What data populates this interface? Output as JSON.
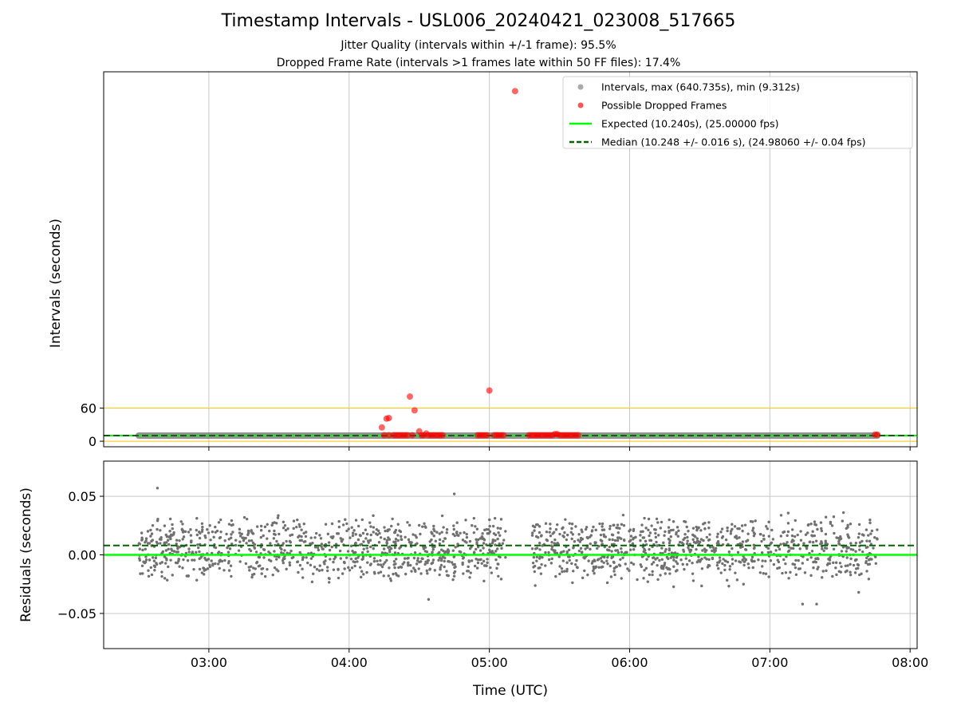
{
  "figure": {
    "title": "Timestamp Intervals - USL006_20240421_023008_517665",
    "subtitle_1": "Jitter Quality (intervals within +/-1 frame): 95.5%",
    "subtitle_2": "Dropped Frame Rate (intervals >1 frames late within 50 FF files): 17.4%"
  },
  "colors": {
    "intervals": "#808080",
    "dropped": "#ff0000",
    "expected": "#00ff00",
    "median": "#006400",
    "threshold": "#ffc000",
    "grid": "#c8c8c8",
    "residual_points": "#707070"
  },
  "chart_data": [
    {
      "type": "scatter",
      "ylabel": "Intervals (seconds)",
      "xlabel": "",
      "ylim": [
        -10,
        670
      ],
      "yticks": [
        0,
        60
      ],
      "ytick_labels": [
        "0",
        "60"
      ],
      "xlim_hours_utc": [
        2.25,
        8.05
      ],
      "xticks_hours_utc": [
        3,
        4,
        5,
        6,
        7,
        8
      ],
      "xtick_labels": [
        "03:00",
        "04:00",
        "05:00",
        "06:00",
        "07:00",
        "08:00"
      ],
      "hlines": [
        {
          "name": "threshold_high",
          "y": 60
        },
        {
          "name": "threshold_low",
          "y": 0
        }
      ],
      "legend_placement": "top-right",
      "grid": "x",
      "legend": [
        {
          "label": "Intervals, max (640.735s), min (9.312s)",
          "kind": "marker",
          "color": "#aaaaaa"
        },
        {
          "label": "Possible Dropped Frames",
          "kind": "marker",
          "color": "#ff5555"
        },
        {
          "label": "Expected (10.240s), (25.00000 fps)",
          "kind": "line",
          "color": "#00ff00"
        },
        {
          "label": "Median (10.248 +/- 0.016 s), (24.98060 +/- 0.04 fps)",
          "kind": "dashed",
          "color": "#006400"
        }
      ],
      "series": [
        {
          "name": "Intervals",
          "x_start": "02:30",
          "x_end": "07:46",
          "value": 10.25
        },
        {
          "name": "Expected",
          "value": 10.24
        },
        {
          "name": "Median",
          "value": 10.248
        },
        {
          "name": "Possible Dropped Frames",
          "points": [
            [
              "04:14",
              25
            ],
            [
              "04:16",
              41
            ],
            [
              "04:17",
              42
            ],
            [
              "04:26",
              81
            ],
            [
              "04:28",
              56
            ],
            [
              "04:30",
              18
            ],
            [
              "04:33",
              14
            ],
            [
              "05:00",
              92
            ],
            [
              "05:11",
              635
            ],
            [
              "04:15",
              11
            ],
            [
              "04:17",
              11
            ],
            [
              "04:19",
              11
            ],
            [
              "04:20",
              11
            ],
            [
              "04:21",
              11
            ],
            [
              "04:22",
              11
            ],
            [
              "04:23",
              11
            ],
            [
              "04:24",
              11
            ],
            [
              "04:25",
              11
            ],
            [
              "04:27",
              11
            ],
            [
              "04:31",
              11
            ],
            [
              "04:32",
              11
            ],
            [
              "04:34",
              11
            ],
            [
              "04:35",
              11
            ],
            [
              "04:36",
              11
            ],
            [
              "04:37",
              11
            ],
            [
              "04:38",
              11
            ],
            [
              "04:39",
              11
            ],
            [
              "04:40",
              11
            ],
            [
              "04:55",
              11
            ],
            [
              "04:56",
              11
            ],
            [
              "04:57",
              11
            ],
            [
              "04:58",
              11
            ],
            [
              "04:59",
              11
            ],
            [
              "05:02",
              11
            ],
            [
              "05:03",
              11
            ],
            [
              "05:04",
              11
            ],
            [
              "05:05",
              11
            ],
            [
              "05:06",
              11
            ],
            [
              "05:17",
              11
            ],
            [
              "05:18",
              11
            ],
            [
              "05:19",
              11
            ],
            [
              "05:20",
              11
            ],
            [
              "05:21",
              11
            ],
            [
              "05:22",
              11
            ],
            [
              "05:23",
              11
            ],
            [
              "05:24",
              11
            ],
            [
              "05:25",
              11
            ],
            [
              "05:26",
              11
            ],
            [
              "05:27",
              11
            ],
            [
              "05:28",
              13
            ],
            [
              "05:29",
              13
            ],
            [
              "05:30",
              11
            ],
            [
              "05:31",
              11
            ],
            [
              "05:32",
              11
            ],
            [
              "05:33",
              11
            ],
            [
              "05:34",
              11
            ],
            [
              "05:35",
              11
            ],
            [
              "05:36",
              11
            ],
            [
              "05:37",
              11
            ],
            [
              "05:38",
              11
            ],
            [
              "07:45",
              12
            ],
            [
              "07:46",
              12
            ]
          ]
        }
      ]
    },
    {
      "type": "scatter",
      "ylabel": "Residuals (seconds)",
      "xlabel": "Time (UTC)",
      "ylim": [
        -0.08,
        0.08
      ],
      "yticks": [
        -0.05,
        0.0,
        0.05
      ],
      "ytick_labels": [
        "−0.05",
        "0.00",
        "0.05"
      ],
      "xlim_hours_utc": [
        2.25,
        8.05
      ],
      "xticks_hours_utc": [
        3,
        4,
        5,
        6,
        7,
        8
      ],
      "xtick_labels": [
        "03:00",
        "04:00",
        "05:00",
        "06:00",
        "07:00",
        "08:00"
      ],
      "grid": "both",
      "series": [
        {
          "name": "Expected",
          "value": 0.0
        },
        {
          "name": "Median",
          "value": 0.008
        },
        {
          "name": "Residuals",
          "description_segments": [
            {
              "x_start": "02:30",
              "x_end": "05:07",
              "count": 930
            },
            {
              "x_start": "05:18",
              "x_end": "07:46",
              "count": 880
            }
          ],
          "distribution": {
            "levels": [
              -0.01,
              0.0,
              0.01,
              0.02
            ],
            "spread": 0.014,
            "min": -0.042,
            "max": 0.057
          },
          "outliers": [
            [
              "02:38",
              0.057
            ],
            [
              "04:45",
              0.052
            ],
            [
              "04:34",
              -0.038
            ],
            [
              "07:14",
              -0.042
            ],
            [
              "07:20",
              -0.042
            ],
            [
              "07:38",
              -0.032
            ]
          ]
        }
      ]
    }
  ]
}
